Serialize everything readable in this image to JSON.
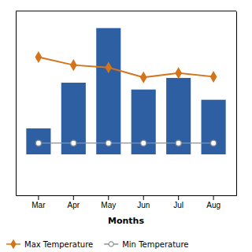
{
  "chart_data": {
    "type": "bar",
    "x_label": "Months",
    "categories": [
      "Mar",
      "Apr",
      "May",
      "Jun",
      "Jul",
      "Aug"
    ],
    "series": [
      {
        "type": "bar",
        "color": "#2E5FA3",
        "values": [
          38,
          105,
          185,
          95,
          112,
          80
        ]
      },
      {
        "name": "Max Temperature",
        "type": "line",
        "axis": "y2",
        "color": "#D4731A",
        "marker": "diamond",
        "values": [
          28.5,
          27.2,
          26.8,
          25.2,
          25.9,
          25.3
        ]
      },
      {
        "name": "Min Temperature",
        "type": "line",
        "axis": "y2",
        "color": "#909090",
        "marker": "circle",
        "values": [
          14.5,
          14.5,
          14.5,
          14.5,
          14.5,
          14.5
        ]
      }
    ],
    "ylim": [
      -60,
      210
    ],
    "y2lim": [
      6,
      36
    ],
    "tick_labels": "x",
    "grid": false,
    "legend": "lower left"
  }
}
